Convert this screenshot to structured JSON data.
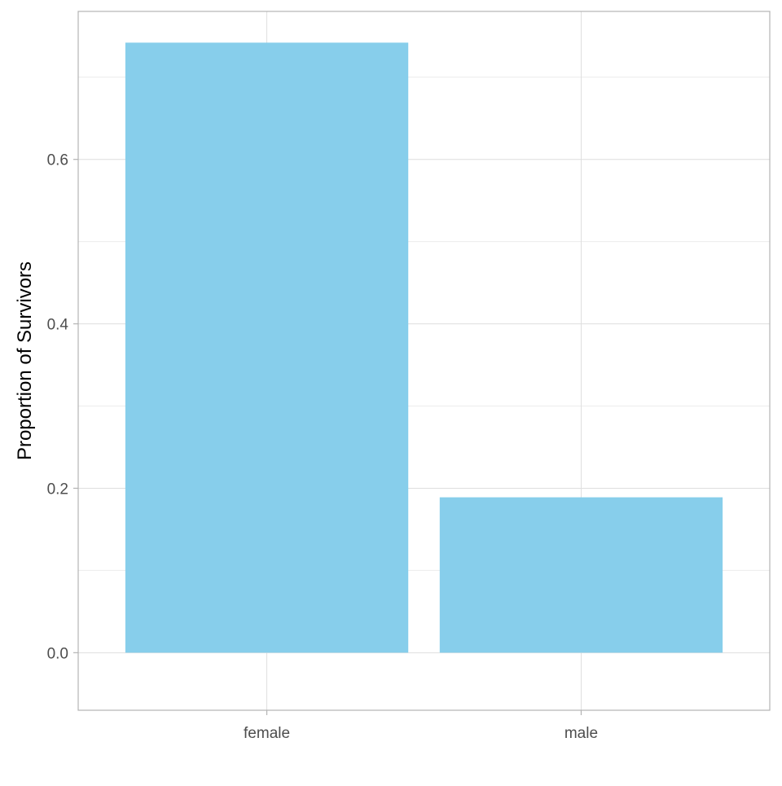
{
  "chart_data": {
    "type": "bar",
    "title": "",
    "xlabel": "",
    "ylabel": "Proportion of Survivors",
    "categories": [
      "female",
      "male"
    ],
    "values": [
      0.742,
      0.189
    ],
    "ylim": [
      -0.07,
      0.78
    ],
    "y_ticks": [
      0.0,
      0.2,
      0.4,
      0.6
    ],
    "y_tick_labels": [
      "0.0",
      "0.2",
      "0.4",
      "0.6"
    ],
    "y_minor_ticks": [
      0.1,
      0.3,
      0.5,
      0.7
    ],
    "grid": true,
    "legend": "none",
    "colors": {
      "bar": "#87CEEB",
      "panel_border": "#b3b3b3",
      "grid_major": "#dedede",
      "grid_minor": "#ececec",
      "tick_label": "#4d4d4d",
      "axis_title": "#000000"
    }
  }
}
